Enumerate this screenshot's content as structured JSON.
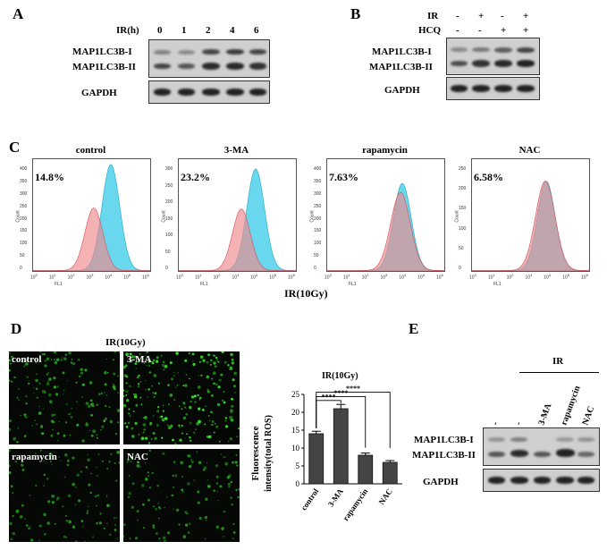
{
  "panel_A": {
    "label": "A",
    "header_label": "IR(h)",
    "lanes": [
      "0",
      "1",
      "2",
      "4",
      "6"
    ],
    "rows": [
      "MAP1LC3B-I",
      "MAP1LC3B-II",
      "GAPDH"
    ]
  },
  "panel_B": {
    "label": "B",
    "cond_rows": [
      {
        "name": "IR",
        "marks": [
          "-",
          "+",
          "-",
          "+"
        ]
      },
      {
        "name": "HCQ",
        "marks": [
          "-",
          "-",
          "+",
          "+"
        ]
      }
    ],
    "rows": [
      "MAP1LC3B-I",
      "MAP1LC3B-II",
      "GAPDH"
    ]
  },
  "panel_C": {
    "label": "C",
    "xlabel": "IR(10Gy)",
    "axis_y": "Count",
    "axis_x": "FL1",
    "x_ticks": [
      "10",
      "10",
      "10",
      "10",
      "10",
      "10",
      "10"
    ],
    "x_exps": [
      "0",
      "1",
      "2",
      "3",
      "4",
      "5",
      "6"
    ],
    "hists": [
      {
        "title": "control",
        "pct": "14.8%",
        "yticks": [
          "400",
          "350",
          "300",
          "250",
          "200",
          "150",
          "100",
          "50",
          "0"
        ]
      },
      {
        "title": "3-MA",
        "pct": "23.2%",
        "yticks": [
          "300",
          "250",
          "200",
          "150",
          "100",
          "50",
          "0"
        ]
      },
      {
        "title": "rapamycin",
        "pct": "7.63%",
        "yticks": [
          "400",
          "350",
          "300",
          "250",
          "200",
          "150",
          "100",
          "50",
          "0"
        ]
      },
      {
        "title": "NAC",
        "pct": "6.58%",
        "yticks": [
          "250",
          "200",
          "150",
          "100",
          "50",
          "0"
        ]
      }
    ],
    "colors": {
      "red": "#f0898c",
      "cyan": "#4fd0ea",
      "overlap": "#7b8fb4"
    }
  },
  "panel_D": {
    "label": "D",
    "micro_title": "IR(10Gy)",
    "images": [
      "control",
      "3-MA",
      "rapamycin",
      "NAC"
    ],
    "chart_data": {
      "type": "bar",
      "title": "IR(10Gy)",
      "ylabel": "Fluorescence intensity(total ROS)",
      "categories": [
        "control",
        "3-MA",
        "rapamycin",
        "NAC"
      ],
      "values": [
        14,
        21,
        8,
        6
      ],
      "errors": [
        0.7,
        1.2,
        0.6,
        0.5
      ],
      "ylim": [
        0,
        25
      ],
      "yticks": [
        "0",
        "5",
        "10",
        "15",
        "20",
        "25"
      ],
      "significance": [
        "****",
        "****",
        "****"
      ],
      "bar_color": "#444444"
    }
  },
  "panel_E": {
    "label": "E",
    "header_label": "IR",
    "lanes": [
      "-",
      "-",
      "3-MA",
      "rapamycin",
      "NAC"
    ],
    "rows": [
      "MAP1LC3B-I",
      "MAP1LC3B-II",
      "GAPDH"
    ]
  }
}
